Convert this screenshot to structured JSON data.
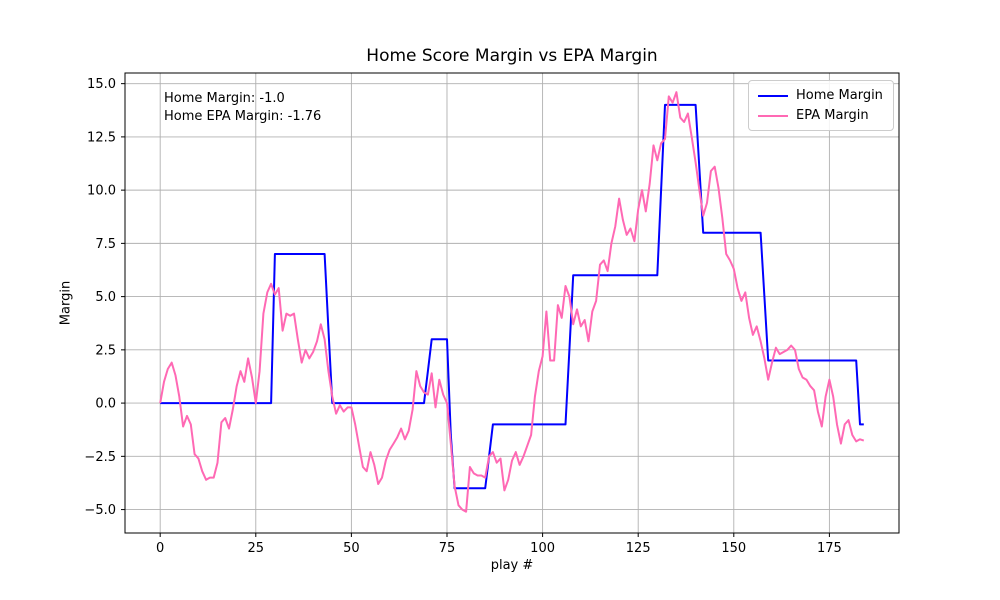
{
  "title": "Home Score Margin vs EPA Margin",
  "annotation": {
    "line1": "Home Margin: -1.0",
    "line2": "Home EPA Margin: -1.76"
  },
  "axes": {
    "xlabel": "play #",
    "ylabel": "Margin",
    "xticks": [
      0,
      25,
      50,
      75,
      100,
      125,
      150,
      175
    ],
    "xtick_labels": [
      "0",
      "25",
      "50",
      "75",
      "100",
      "125",
      "150",
      "175"
    ],
    "yticks": [
      15.0,
      12.5,
      10.0,
      7.5,
      5.0,
      2.5,
      0.0,
      -2.5,
      -5.0
    ],
    "ytick_labels": [
      "15.0",
      "12.5",
      "10.0",
      "7.5",
      "5.0",
      "2.5",
      "0.0",
      "−2.5",
      "−5.0"
    ],
    "xlim": [
      -9.2,
      193.2
    ],
    "ylim": [
      -6.1,
      15.5
    ],
    "grid": true,
    "grid_color": "#b0b0b0",
    "spine_color": "#000000"
  },
  "legend": {
    "position": "upper right",
    "entries": [
      {
        "label": "Home Margin",
        "color": "#0000ff"
      },
      {
        "label": "EPA Margin",
        "color": "#ff69b4"
      }
    ]
  },
  "chart_data": {
    "type": "line",
    "title": "Home Score Margin vs EPA Margin",
    "xlabel": "play #",
    "ylabel": "Margin",
    "x_start": 0,
    "x_step": 1,
    "series": [
      {
        "name": "Home Margin",
        "color": "#0000ff",
        "values": [
          0,
          0,
          0,
          0,
          0,
          0,
          0,
          0,
          0,
          0,
          0,
          0,
          0,
          0,
          0,
          0,
          0,
          0,
          0,
          0,
          0,
          0,
          0,
          0,
          0,
          0,
          0,
          0,
          0,
          0,
          7,
          7,
          7,
          7,
          7,
          7,
          7,
          7,
          7,
          7,
          7,
          7,
          7,
          7,
          3.5,
          0,
          0,
          0,
          0,
          0,
          0,
          0,
          0,
          0,
          0,
          0,
          0,
          0,
          0,
          0,
          0,
          0,
          0,
          0,
          0,
          0,
          0,
          0,
          0,
          0,
          1.5,
          3,
          3,
          3,
          3,
          3,
          -1.5,
          -4,
          -4,
          -4,
          -4,
          -4,
          -4,
          -4,
          -4,
          -4,
          -2.5,
          -1,
          -1,
          -1,
          -1,
          -1,
          -1,
          -1,
          -1,
          -1,
          -1,
          -1,
          -1,
          -1,
          -1,
          -1,
          -1,
          -1,
          -1,
          -1,
          -1,
          2.5,
          6,
          6,
          6,
          6,
          6,
          6,
          6,
          6,
          6,
          6,
          6,
          6,
          6,
          6,
          6,
          6,
          6,
          6,
          6,
          6,
          6,
          6,
          6,
          10,
          14,
          14,
          14,
          14,
          14,
          14,
          14,
          14,
          14,
          11,
          8,
          8,
          8,
          8,
          8,
          8,
          8,
          8,
          8,
          8,
          8,
          8,
          8,
          8,
          8,
          8,
          5,
          2,
          2,
          2,
          2,
          2,
          2,
          2,
          2,
          2,
          2,
          2,
          2,
          2,
          2,
          2,
          2,
          2,
          2,
          2,
          2,
          2,
          2,
          2,
          2,
          -1,
          -1
        ]
      },
      {
        "name": "EPA Margin",
        "color": "#ff69b4",
        "values": [
          0.0,
          1.0,
          1.6,
          1.9,
          1.3,
          0.3,
          -1.1,
          -0.6,
          -1.0,
          -2.4,
          -2.6,
          -3.2,
          -3.6,
          -3.5,
          -3.5,
          -2.8,
          -0.9,
          -0.7,
          -1.2,
          -0.3,
          0.8,
          1.5,
          1.0,
          2.1,
          1.2,
          0.0,
          1.5,
          4.2,
          5.2,
          5.6,
          5.1,
          5.4,
          3.4,
          4.2,
          4.1,
          4.2,
          3.0,
          1.9,
          2.5,
          2.1,
          2.4,
          2.9,
          3.7,
          3.0,
          1.5,
          0.3,
          -0.5,
          -0.1,
          -0.4,
          -0.2,
          -0.2,
          -1.0,
          -2.0,
          -3.0,
          -3.2,
          -2.3,
          -2.9,
          -3.8,
          -3.5,
          -2.7,
          -2.2,
          -1.9,
          -1.6,
          -1.2,
          -1.7,
          -1.3,
          -0.3,
          1.5,
          0.8,
          0.5,
          0.4,
          1.4,
          -0.2,
          1.1,
          0.4,
          0.0,
          -1.9,
          -3.9,
          -4.8,
          -5.0,
          -5.1,
          -3.0,
          -3.3,
          -3.4,
          -3.4,
          -3.5,
          -2.5,
          -2.3,
          -2.8,
          -2.6,
          -4.1,
          -3.6,
          -2.7,
          -2.3,
          -2.9,
          -2.5,
          -2.0,
          -1.5,
          0.3,
          1.5,
          2.2,
          4.3,
          2.0,
          2.0,
          4.6,
          4.0,
          5.5,
          5.0,
          3.7,
          4.4,
          3.6,
          3.9,
          2.9,
          4.3,
          4.8,
          6.5,
          6.7,
          6.2,
          7.5,
          8.3,
          9.6,
          8.6,
          7.9,
          8.2,
          7.6,
          9.1,
          10.0,
          9.0,
          10.3,
          12.1,
          11.4,
          12.2,
          12.4,
          14.4,
          14.1,
          14.6,
          13.4,
          13.2,
          13.6,
          12.5,
          11.3,
          10.0,
          8.8,
          9.4,
          10.9,
          11.1,
          10.1,
          8.7,
          7.0,
          6.7,
          6.3,
          5.4,
          4.8,
          5.2,
          4.0,
          3.2,
          3.6,
          2.9,
          2.1,
          1.1,
          1.9,
          2.6,
          2.3,
          2.4,
          2.5,
          2.7,
          2.5,
          1.6,
          1.2,
          1.1,
          0.8,
          0.6,
          -0.4,
          -1.1,
          0.3,
          1.1,
          0.3,
          -1.0,
          -1.9,
          -1.0,
          -0.8,
          -1.5,
          -1.8,
          -1.7,
          -1.76
        ]
      }
    ]
  }
}
